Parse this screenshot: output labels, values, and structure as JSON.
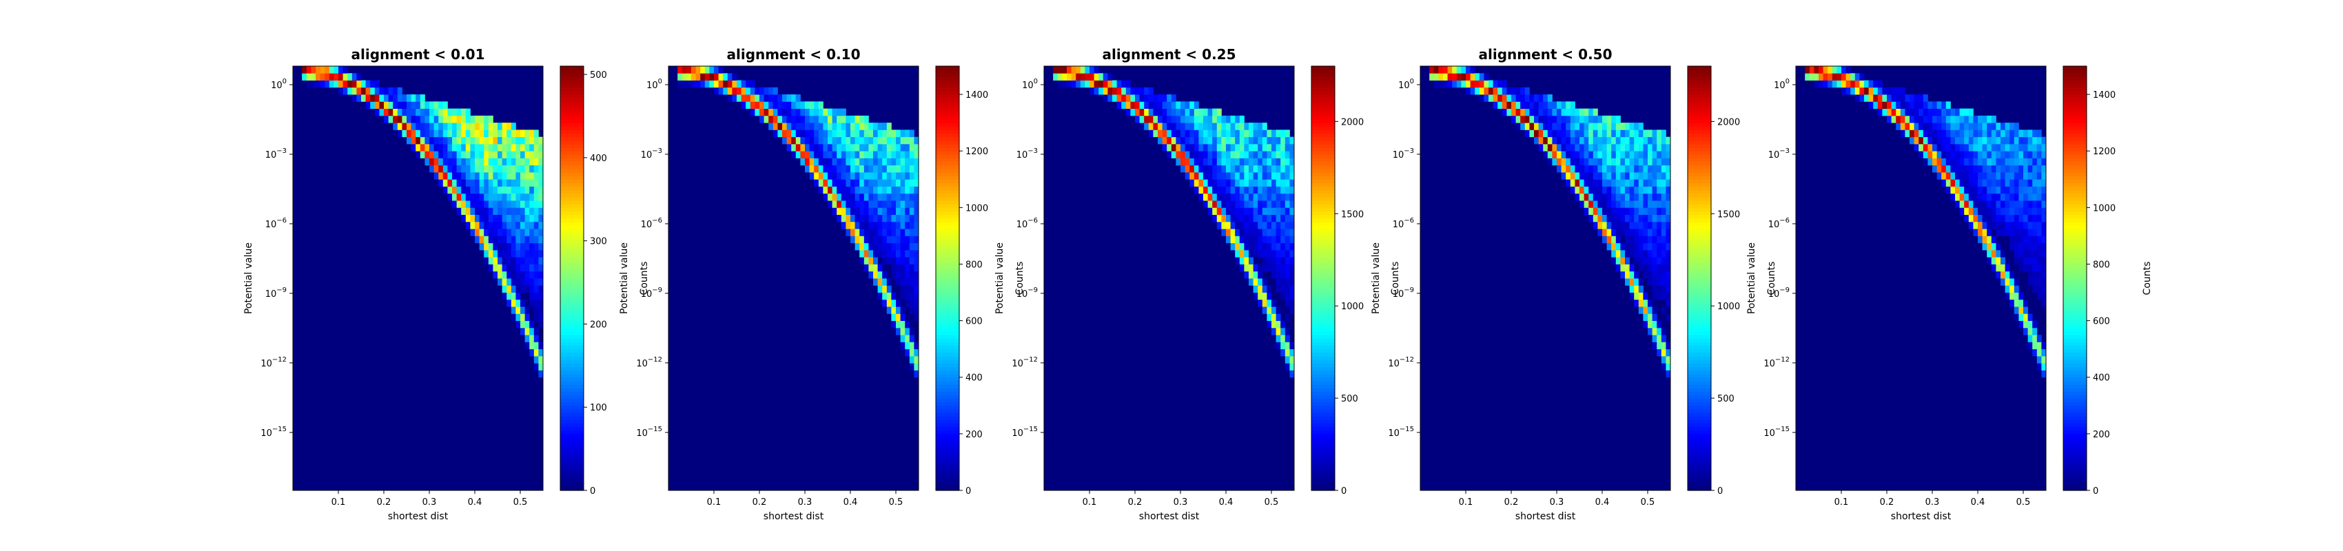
{
  "colormap": [
    "#00007f",
    "#0000ff",
    "#007fff",
    "#00ffff",
    "#7fff7f",
    "#ffff00",
    "#ff7f00",
    "#ff0000",
    "#7f0000"
  ],
  "chart_data": [
    {
      "type": "heatmap",
      "title": "alignment < 0.01",
      "xlabel": "shortest dist",
      "ylabel": "Potential value",
      "colorbar_label": "Counts",
      "x_ticks": [
        "0.1",
        "0.2",
        "0.3",
        "0.4",
        "0.5"
      ],
      "xlim": [
        0.0,
        0.55
      ],
      "y_scale": "log",
      "y_tick_exponents": [
        "0",
        "-3",
        "-6",
        "-9",
        "-12",
        "-15"
      ],
      "ylim_log10": [
        -17.5,
        0.8
      ],
      "colorbar_ticks": [
        "0",
        "100",
        "200",
        "300",
        "400",
        "500"
      ],
      "vmax": 510,
      "ridge_peak": 500,
      "cloud_peak": 360
    },
    {
      "type": "heatmap",
      "title": "alignment < 0.10",
      "xlabel": "shortest dist",
      "ylabel": "Potential value",
      "colorbar_label": "Counts",
      "x_ticks": [
        "0.1",
        "0.2",
        "0.3",
        "0.4",
        "0.5"
      ],
      "xlim": [
        0.0,
        0.55
      ],
      "y_scale": "log",
      "y_tick_exponents": [
        "0",
        "-3",
        "-6",
        "-9",
        "-12",
        "-15"
      ],
      "ylim_log10": [
        -17.5,
        0.8
      ],
      "colorbar_ticks": [
        "0",
        "200",
        "400",
        "600",
        "800",
        "1000",
        "1200",
        "1400"
      ],
      "vmax": 1500,
      "ridge_peak": 1470,
      "cloud_peak": 820
    },
    {
      "type": "heatmap",
      "title": "alignment < 0.25",
      "xlabel": "shortest dist",
      "ylabel": "Potential value",
      "colorbar_label": "Counts",
      "x_ticks": [
        "0.1",
        "0.2",
        "0.3",
        "0.4",
        "0.5"
      ],
      "xlim": [
        0.0,
        0.55
      ],
      "y_scale": "log",
      "y_tick_exponents": [
        "0",
        "-3",
        "-6",
        "-9",
        "-12",
        "-15"
      ],
      "ylim_log10": [
        -17.5,
        0.8
      ],
      "colorbar_ticks": [
        "0",
        "500",
        "1000",
        "1500",
        "2000"
      ],
      "vmax": 2300,
      "ridge_peak": 2280,
      "cloud_peak": 1150
    },
    {
      "type": "heatmap",
      "title": "alignment < 0.50",
      "xlabel": "shortest dist",
      "ylabel": "Potential value",
      "colorbar_label": "Counts",
      "x_ticks": [
        "0.1",
        "0.2",
        "0.3",
        "0.4",
        "0.5"
      ],
      "xlim": [
        0.0,
        0.55
      ],
      "y_scale": "log",
      "y_tick_exponents": [
        "0",
        "-3",
        "-6",
        "-9",
        "-12",
        "-15"
      ],
      "ylim_log10": [
        -17.5,
        0.8
      ],
      "colorbar_ticks": [
        "0",
        "500",
        "1000",
        "1500",
        "2000"
      ],
      "vmax": 2300,
      "ridge_peak": 2280,
      "cloud_peak": 1100
    },
    {
      "type": "heatmap",
      "title": "",
      "xlabel": "shortest dist",
      "ylabel": "Potential value",
      "colorbar_label": "Counts",
      "x_ticks": [
        "0.1",
        "0.2",
        "0.3",
        "0.4",
        "0.5"
      ],
      "xlim": [
        0.0,
        0.55
      ],
      "y_scale": "log",
      "y_tick_exponents": [
        "0",
        "-3",
        "-6",
        "-9",
        "-12",
        "-15"
      ],
      "ylim_log10": [
        -17.5,
        0.8
      ],
      "colorbar_ticks": [
        "0",
        "200",
        "400",
        "600",
        "800",
        "1000",
        "1200",
        "1400"
      ],
      "vmax": 1500,
      "ridge_peak": 1470,
      "cloud_peak": 560
    }
  ]
}
